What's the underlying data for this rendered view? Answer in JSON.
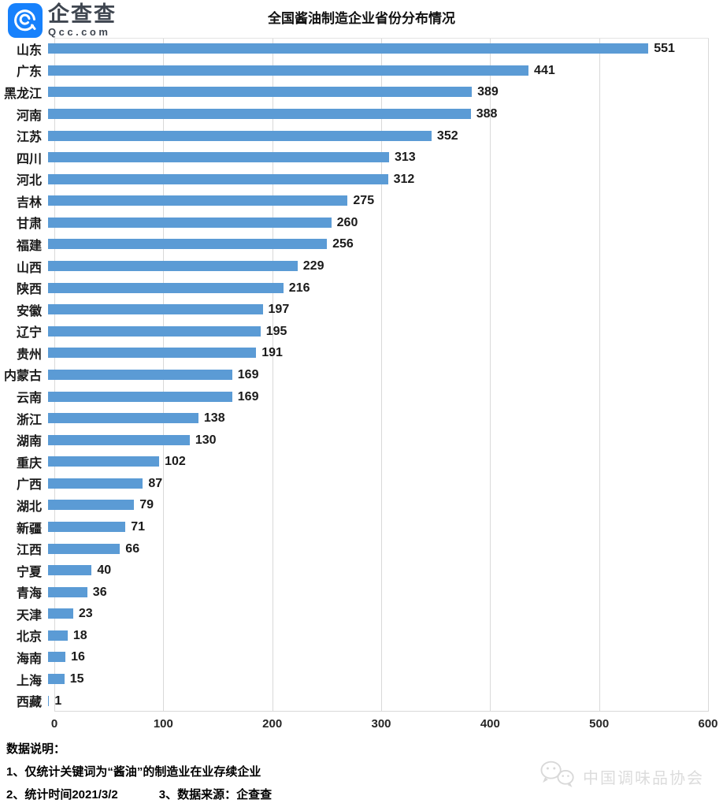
{
  "logo": {
    "name": "企查查",
    "sub": "Qcc.com"
  },
  "title": "全国酱油制造企业省份分布情况",
  "chart_data": {
    "type": "bar",
    "orientation": "horizontal",
    "title": "全国酱油制造企业省份分布情况",
    "categories": [
      "山东",
      "广东",
      "黑龙江",
      "河南",
      "江苏",
      "四川",
      "河北",
      "吉林",
      "甘肃",
      "福建",
      "山西",
      "陕西",
      "安徽",
      "辽宁",
      "贵州",
      "内蒙古",
      "云南",
      "浙江",
      "湖南",
      "重庆",
      "广西",
      "湖北",
      "新疆",
      "江西",
      "宁夏",
      "青海",
      "天津",
      "北京",
      "海南",
      "上海",
      "西藏"
    ],
    "values": [
      551,
      441,
      389,
      388,
      352,
      313,
      312,
      275,
      260,
      256,
      229,
      216,
      197,
      195,
      191,
      169,
      169,
      138,
      130,
      102,
      87,
      79,
      71,
      66,
      40,
      36,
      23,
      18,
      16,
      15,
      1
    ],
    "xlabel": "",
    "ylabel": "",
    "xlim": [
      0,
      600
    ],
    "xticks": [
      0,
      100,
      200,
      300,
      400,
      500,
      600
    ],
    "grid": "vertical",
    "legend": "none",
    "bar_color": "#5B9BD5",
    "gridline_color": "#D9D9D9"
  },
  "footer": {
    "heading": "数据说明：",
    "line1": "1、仅统计关键词为“酱油”的制造业在业存续企业",
    "line2": "2、统计时间2021/3/2",
    "line3": "3、数据来源：企查查"
  },
  "watermark": {
    "icon": "wechat-icon",
    "text": "中国调味品协会"
  }
}
